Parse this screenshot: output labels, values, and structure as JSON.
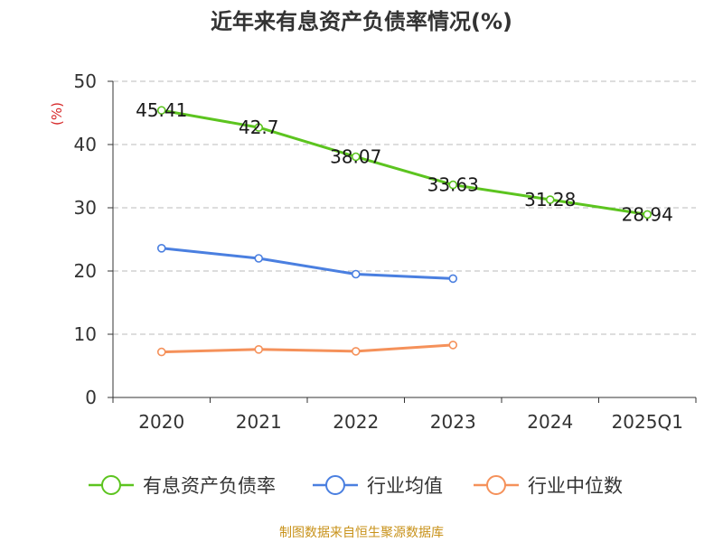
{
  "chart_data": {
    "type": "line",
    "title": "近年来有息资产负债率情况(%)",
    "ylabel": "(%)",
    "xlabel": "",
    "categories": [
      "2020",
      "2021",
      "2022",
      "2023",
      "2024",
      "2025Q1"
    ],
    "ylim": [
      0,
      50
    ],
    "yticks": [
      0,
      10,
      20,
      30,
      40,
      50
    ],
    "grid": true,
    "legend_position": "bottom",
    "series": [
      {
        "name": "有息资产负债率",
        "color": "#5cc41f",
        "values": [
          45.41,
          42.7,
          38.07,
          33.63,
          31.28,
          28.94
        ],
        "labels": [
          "45.41",
          "42.7",
          "38.07",
          "33.63",
          "31.28",
          "28.94"
        ]
      },
      {
        "name": "行业均值",
        "color": "#4a7fe0",
        "values": [
          23.6,
          22.0,
          19.5,
          18.8,
          null,
          null
        ]
      },
      {
        "name": "行业中位数",
        "color": "#f5915a",
        "values": [
          7.2,
          7.6,
          7.3,
          8.3,
          null,
          null
        ]
      }
    ],
    "source": "制图数据来自恒生聚源数据库"
  }
}
